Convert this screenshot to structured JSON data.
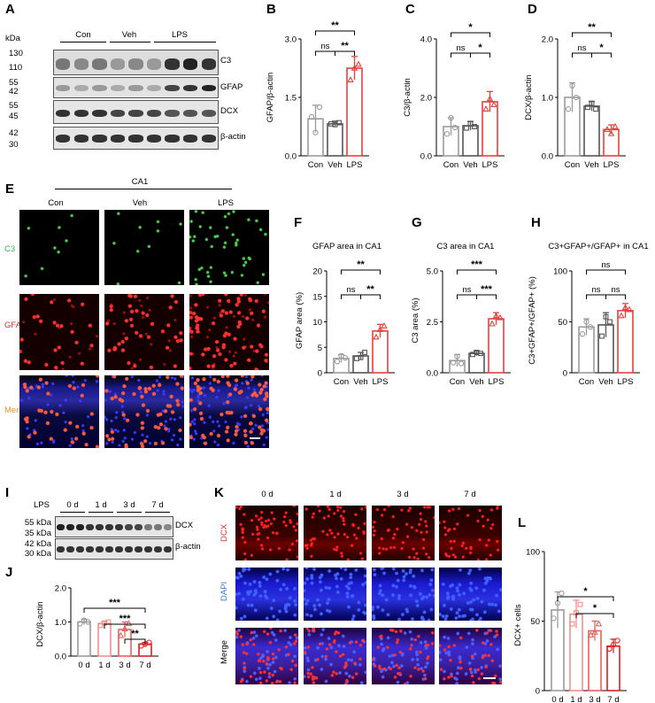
{
  "panels": {
    "A": "A",
    "B": "B",
    "C": "C",
    "D": "D",
    "E": "E",
    "F": "F",
    "G": "G",
    "H": "H",
    "I": "I",
    "J": "J",
    "K": "K",
    "L": "L"
  },
  "colors": {
    "con": "#9b9b9b",
    "veh": "#555555",
    "lps": "#e8413c",
    "d0": "#9b9b9b",
    "d1": "#f28f8a",
    "d3": "#e8625c",
    "d7": "#e02020"
  },
  "blotA": {
    "kda_label": "kDa",
    "groups": [
      "Con",
      "Veh",
      "LPS"
    ],
    "markers": {
      "c3": [
        "130",
        "110"
      ],
      "gfap": [
        "55",
        "42"
      ],
      "dcx": [
        "55",
        "45"
      ],
      "actin": [
        "42",
        "30"
      ]
    },
    "proteins": [
      "C3",
      "GFAP",
      "DCX",
      "β-actin"
    ]
  },
  "sectionE": {
    "region": "CA1",
    "columns": [
      "Con",
      "Veh",
      "LPS"
    ],
    "rows": [
      "C3",
      "GFAP",
      "Merge"
    ]
  },
  "blotI": {
    "lps_label": "LPS",
    "timepoints": [
      "0 d",
      "1 d",
      "3 d",
      "7 d"
    ],
    "markers": [
      "55 kDa",
      "35 kDa",
      "42 kDa",
      "30 kDa"
    ],
    "proteins": [
      "DCX",
      "β-actin"
    ]
  },
  "sectionK": {
    "columns": [
      "0 d",
      "1 d",
      "3 d",
      "7 d"
    ],
    "rows": [
      "DCX",
      "DAPI",
      "Merge"
    ]
  },
  "chart_data": [
    {
      "id": "B",
      "type": "bar",
      "categories": [
        "Con",
        "Veh",
        "LPS"
      ],
      "values": [
        0.95,
        0.82,
        2.25
      ],
      "errors": [
        0.35,
        0.07,
        0.3
      ],
      "points": [
        [
          1.0,
          0.6,
          1.25
        ],
        [
          0.82,
          0.8,
          0.85
        ],
        [
          1.95,
          2.25,
          2.35
        ]
      ],
      "ylabel": "GFAP/β-actin",
      "ylim": [
        0,
        3.0
      ],
      "yticks": [
        "0.0",
        "1.5",
        "3.0"
      ],
      "sig": [
        {
          "from": 0,
          "to": 2,
          "label": "**"
        },
        {
          "from": 0,
          "to": 1,
          "label": "ns"
        },
        {
          "from": 1,
          "to": 2,
          "label": "**"
        }
      ]
    },
    {
      "id": "C",
      "type": "bar",
      "categories": [
        "Con",
        "Veh",
        "LPS"
      ],
      "values": [
        1.0,
        1.03,
        1.85
      ],
      "errors": [
        0.3,
        0.15,
        0.35
      ],
      "points": [
        [
          0.75,
          1.3,
          0.97
        ],
        [
          0.95,
          1.1,
          1.0
        ],
        [
          1.6,
          1.95,
          1.75
        ]
      ],
      "ylabel": "C3/β-actin",
      "ylim": [
        0,
        4.0
      ],
      "yticks": [
        "0.0",
        "2.0",
        "4.0"
      ],
      "sig": [
        {
          "from": 0,
          "to": 2,
          "label": "*"
        },
        {
          "from": 0,
          "to": 1,
          "label": "ns"
        },
        {
          "from": 1,
          "to": 2,
          "label": "*"
        }
      ]
    },
    {
      "id": "D",
      "type": "bar",
      "categories": [
        "Con",
        "Veh",
        "LPS"
      ],
      "values": [
        1.0,
        0.85,
        0.45
      ],
      "errors": [
        0.25,
        0.08,
        0.08
      ],
      "points": [
        [
          0.8,
          1.2,
          1.0
        ],
        [
          0.83,
          0.9,
          0.8
        ],
        [
          0.45,
          0.38,
          0.5
        ]
      ],
      "ylabel": "DCX/β-actin",
      "ylim": [
        0,
        2.0
      ],
      "yticks": [
        "0.0",
        "1.0",
        "2.0"
      ],
      "sig": [
        {
          "from": 0,
          "to": 2,
          "label": "**"
        },
        {
          "from": 0,
          "to": 1,
          "label": "ns"
        },
        {
          "from": 1,
          "to": 2,
          "label": "*"
        }
      ]
    },
    {
      "id": "F",
      "type": "bar",
      "title": "GFAP area in CA1",
      "categories": [
        "Con",
        "Veh",
        "LPS"
      ],
      "values": [
        2.8,
        3.3,
        8.2
      ],
      "errors": [
        0.8,
        0.7,
        1.3
      ],
      "points": [
        [
          2.2,
          3.3,
          2.9
        ],
        [
          2.8,
          3.0,
          4.0
        ],
        [
          7.0,
          8.5,
          9.2
        ]
      ],
      "ylabel": "GFAP area (%)",
      "ylim": [
        0,
        20
      ],
      "yticks": [
        "0",
        "5",
        "10",
        "15",
        "20"
      ],
      "sig": [
        {
          "from": 0,
          "to": 2,
          "label": "**"
        },
        {
          "from": 0,
          "to": 1,
          "label": "ns"
        },
        {
          "from": 1,
          "to": 2,
          "label": "**"
        }
      ]
    },
    {
      "id": "G",
      "type": "bar",
      "title": "C3 area in CA1",
      "categories": [
        "Con",
        "Veh",
        "LPS"
      ],
      "values": [
        0.6,
        0.95,
        2.65
      ],
      "errors": [
        0.3,
        0.12,
        0.3
      ],
      "points": [
        [
          0.5,
          0.8,
          0.45
        ],
        [
          0.9,
          1.0,
          0.95
        ],
        [
          2.4,
          2.8,
          2.7
        ]
      ],
      "ylabel": "C3 area (%)",
      "ylim": [
        0,
        5.0
      ],
      "yticks": [
        "0.0",
        "2.5",
        "5.0"
      ],
      "sig": [
        {
          "from": 0,
          "to": 2,
          "label": "***"
        },
        {
          "from": 0,
          "to": 1,
          "label": "ns"
        },
        {
          "from": 1,
          "to": 2,
          "label": "***"
        }
      ]
    },
    {
      "id": "H",
      "type": "bar",
      "title": "C3+GFAP+/GFAP+ in CA1",
      "categories": [
        "Con",
        "Veh",
        "LPS"
      ],
      "values": [
        45,
        47,
        61
      ],
      "errors": [
        8,
        12,
        7
      ],
      "points": [
        [
          38,
          50,
          45
        ],
        [
          36,
          55,
          50
        ],
        [
          56,
          64,
          62
        ]
      ],
      "ylabel": "C3+GFAP+/GFAP+ (%)",
      "ylim": [
        0,
        100
      ],
      "yticks": [
        "0",
        "50",
        "100"
      ],
      "sig": [
        {
          "from": 0,
          "to": 2,
          "label": "ns"
        },
        {
          "from": 0,
          "to": 1,
          "label": "ns"
        },
        {
          "from": 1,
          "to": 2,
          "label": "ns"
        }
      ]
    },
    {
      "id": "J",
      "type": "bar",
      "categories": [
        "0 d",
        "1 d",
        "3 d",
        "7 d"
      ],
      "values": [
        1.0,
        0.95,
        0.78,
        0.35
      ],
      "errors": [
        0.08,
        0.07,
        0.22,
        0.05
      ],
      "points": [
        [
          0.95,
          1.05,
          1.0
        ],
        [
          0.9,
          0.97,
          1.0
        ],
        [
          0.6,
          0.8,
          0.95
        ],
        [
          0.3,
          0.35,
          0.4
        ]
      ],
      "ylabel": "DCX/β-actin",
      "ylim": [
        0,
        2.0
      ],
      "yticks": [
        "0.0",
        "1.0",
        "2.0"
      ],
      "sig": [
        {
          "from": 0,
          "to": 3,
          "label": "***"
        },
        {
          "from": 1,
          "to": 3,
          "label": "***"
        },
        {
          "from": 2,
          "to": 3,
          "label": "**"
        }
      ]
    },
    {
      "id": "L",
      "type": "bar",
      "categories": [
        "0 d",
        "1 d",
        "3 d",
        "7 d"
      ],
      "values": [
        58,
        55,
        43,
        32
      ],
      "errors": [
        13,
        10,
        7,
        5
      ],
      "points": [
        [
          52,
          63,
          70
        ],
        [
          48,
          56,
          62
        ],
        [
          40,
          42,
          48
        ],
        [
          30,
          33,
          36
        ]
      ],
      "ylabel": "DCX+ cells",
      "ylim": [
        0,
        100
      ],
      "yticks": [
        "0",
        "50",
        "100"
      ],
      "sig": [
        {
          "from": 0,
          "to": 3,
          "label": "*"
        },
        {
          "from": 1,
          "to": 3,
          "label": "*"
        }
      ]
    }
  ]
}
